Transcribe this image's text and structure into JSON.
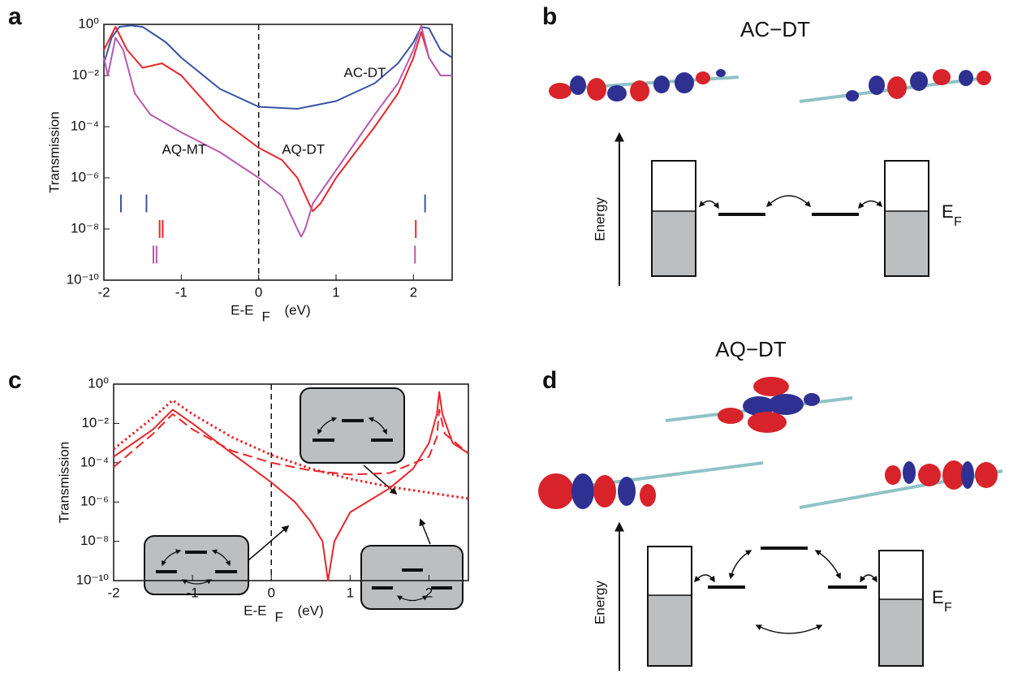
{
  "panel_labels": [
    "a",
    "b",
    "c",
    "d"
  ],
  "chart_data": [
    {
      "type": "line",
      "ylabel": "Transmission",
      "xlabel": "E-E",
      "xlabel_sub": "F",
      "xlabel_unit": "(eV)",
      "xlim": [
        -2,
        2.5
      ],
      "xticks": [
        -2,
        -1,
        0,
        1,
        2
      ],
      "ylim": [
        1e-10,
        1
      ],
      "log_y": true,
      "yticks": [
        {
          "value": 1,
          "label": "10⁰"
        },
        {
          "value": 0.01,
          "label": "10⁻²"
        },
        {
          "value": 0.0001,
          "label": "10⁻⁴"
        },
        {
          "value": 1e-06,
          "label": "10⁻⁶"
        },
        {
          "value": 1e-08,
          "label": "10⁻⁸"
        },
        {
          "value": 1e-10,
          "label": "10⁻¹⁰"
        }
      ],
      "vline": 0,
      "series": [
        {
          "name": "AC-DT",
          "color": "#3a53a4",
          "style": "solid",
          "x": [
            -2,
            -1.9,
            -1.8,
            -1.65,
            -1.5,
            -1.35,
            -1.2,
            -1,
            -0.5,
            0,
            0.5,
            1,
            1.5,
            1.8,
            2.0,
            2.1,
            2.2,
            2.35,
            2.5
          ],
          "values": [
            0.03,
            0.3,
            0.8,
            0.9,
            0.8,
            0.4,
            0.2,
            0.05,
            0.003,
            0.0006,
            0.0005,
            0.001,
            0.005,
            0.03,
            0.2,
            0.8,
            0.7,
            0.1,
            0.05
          ]
        },
        {
          "name": "AQ-DT",
          "color": "#e8262a",
          "style": "solid",
          "x": [
            -2,
            -1.85,
            -1.7,
            -1.5,
            -1.25,
            -1,
            -0.5,
            0,
            0.3,
            0.5,
            0.65,
            0.7,
            0.8,
            1,
            1.5,
            1.8,
            2.0,
            2.1,
            2.2,
            2.35,
            2.5
          ],
          "values": [
            0.1,
            0.8,
            0.1,
            0.02,
            0.03,
            0.01,
            0.0002,
            1.5e-05,
            5e-06,
            1e-06,
            1e-07,
            5e-08,
            1e-07,
            1e-06,
            0.0001,
            0.002,
            0.05,
            0.5,
            0.05,
            0.01,
            0.01
          ]
        },
        {
          "name": "AQ-MT",
          "color": "#b65ab0",
          "style": "solid",
          "x": [
            -2,
            -1.95,
            -1.85,
            -1.75,
            -1.6,
            -1.4,
            -1,
            -0.5,
            0,
            0.3,
            0.5,
            0.55,
            0.6,
            0.7,
            1,
            1.5,
            1.8,
            2.0,
            2.1,
            2.2,
            2.35,
            2.5
          ],
          "values": [
            0.05,
            0.01,
            0.3,
            0.1,
            0.002,
            0.0003,
            6e-05,
            1e-05,
            1e-06,
            2e-07,
            1e-08,
            5e-09,
            1e-08,
            1e-07,
            2e-06,
            0.0003,
            0.005,
            0.1,
            0.9,
            0.05,
            0.01,
            0.01
          ]
        }
      ],
      "markers": [
        {
          "color": "#3a53a4",
          "x": [
            -1.78,
            -1.45,
            2.15
          ],
          "y": 1e-07
        },
        {
          "color": "#e8262a",
          "x": [
            -1.28,
            -1.24,
            2.03
          ],
          "y": 1e-08
        },
        {
          "color": "#b65ab0",
          "x": [
            -1.36,
            -1.32,
            2.02
          ],
          "y": 1e-09
        }
      ]
    },
    {
      "type": "line",
      "ylabel": "Transmission",
      "xlabel": "E-E",
      "xlabel_sub": "F",
      "xlabel_unit": "(eV)",
      "xlim": [
        -2,
        2.5
      ],
      "xticks": [
        -2,
        -1,
        0,
        1,
        2
      ],
      "ylim": [
        1e-10,
        1
      ],
      "log_y": true,
      "yticks": [
        {
          "value": 1,
          "label": "10⁰"
        },
        {
          "value": 0.01,
          "label": "10⁻²"
        },
        {
          "value": 0.0001,
          "label": "10⁻⁴"
        },
        {
          "value": 1e-06,
          "label": "10⁻⁶"
        },
        {
          "value": 1e-08,
          "label": "10⁻⁸"
        },
        {
          "value": 1e-10,
          "label": "10⁻¹⁰"
        }
      ],
      "vline": 0,
      "series": [
        {
          "color": "#e8262a",
          "style": "solid",
          "x": [
            -2,
            -1.5,
            -1.25,
            -1,
            -0.5,
            0,
            0.3,
            0.5,
            0.65,
            0.72,
            0.8,
            1,
            1.5,
            1.8,
            2.0,
            2.1,
            2.13,
            2.17,
            2.3,
            2.5
          ],
          "values": [
            0.0002,
            0.005,
            0.05,
            0.01,
            0.0003,
            1e-05,
            1e-06,
            1e-07,
            1e-08,
            1e-10,
            1e-08,
            3e-07,
            5e-06,
            5e-05,
            0.001,
            0.03,
            0.4,
            0.03,
            0.001,
            0.0003
          ]
        },
        {
          "color": "#e8262a",
          "style": "dashed",
          "x": [
            -2,
            -1.5,
            -1.25,
            -1,
            -0.5,
            0,
            0.5,
            1,
            1.5,
            2.0,
            2.1,
            2.13,
            2.2,
            2.5
          ],
          "values": [
            6e-05,
            0.003,
            0.03,
            0.005,
            0.0004,
            0.0001,
            4e-05,
            2.5e-05,
            3e-05,
            0.0002,
            0.002,
            0.05,
            0.003,
            0.0003
          ]
        },
        {
          "color": "#e8262a",
          "style": "dotted",
          "x": [
            -2,
            -1.5,
            -1.25,
            -1,
            -0.5,
            0,
            0.5,
            1,
            1.5,
            2.0,
            2.5
          ],
          "values": [
            0.0005,
            0.02,
            0.15,
            0.03,
            0.002,
            0.00025,
            5e-05,
            1.5e-05,
            6e-06,
            3e-06,
            1.5e-06
          ]
        }
      ]
    }
  ],
  "diagrams": [
    {
      "title": "AC−DT",
      "axis_label": "Energy",
      "fermi": "E",
      "fermi_sub": "F"
    },
    {
      "title": "AQ−DT",
      "axis_label": "Energy",
      "fermi": "E",
      "fermi_sub": "F"
    }
  ]
}
